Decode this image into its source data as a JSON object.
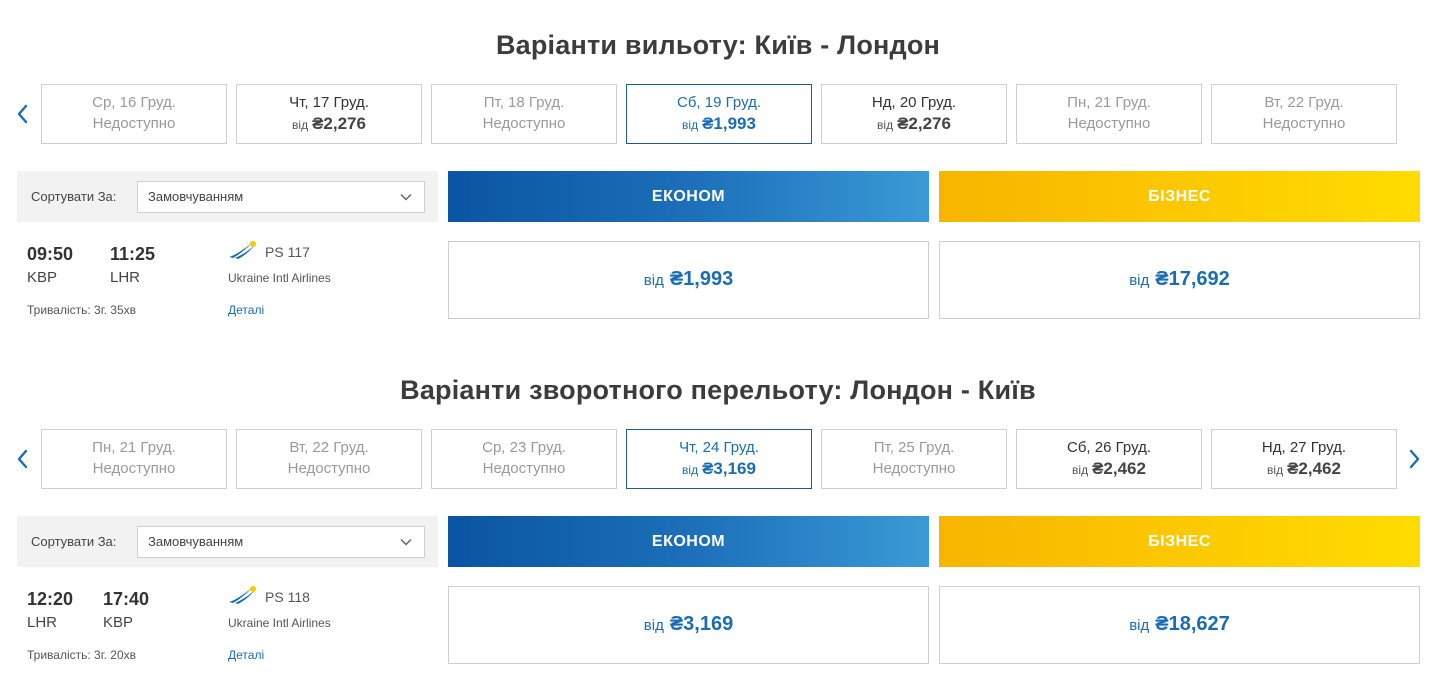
{
  "outbound": {
    "title": "Варіанти вильоту: Київ - Лондон",
    "dates": [
      {
        "date": "Ср, 16 Груд.",
        "status": "Недоступно"
      },
      {
        "date": "Чт, 17 Груд.",
        "prefix": "від",
        "price": "₴2,276"
      },
      {
        "date": "Пт, 18 Груд.",
        "status": "Недоступно"
      },
      {
        "date": "Сб, 19 Груд.",
        "prefix": "від",
        "price": "₴1,993",
        "selected": true
      },
      {
        "date": "Нд, 20 Груд.",
        "prefix": "від",
        "price": "₴2,276"
      },
      {
        "date": "Пн, 21 Груд.",
        "status": "Недоступно"
      },
      {
        "date": "Вт, 22 Груд.",
        "status": "Недоступно"
      }
    ],
    "sort_label": "Сортувати За:",
    "sort_value": "Замовчуванням",
    "cabin_econom": "ЕКОНОМ",
    "cabin_business": "БІЗНЕС",
    "flight": {
      "dep_time": "09:50",
      "arr_time": "11:25",
      "dep_code": "KBP",
      "arr_code": "LHR",
      "duration": "Тривалість: 3г. 35хв",
      "flight_no": "PS 117",
      "airline": "Ukraine Intl Airlines",
      "details": "Деталі",
      "econom_prefix": "від",
      "econom_price": "₴1,993",
      "business_prefix": "від",
      "business_price": "₴17,692"
    }
  },
  "return": {
    "title": "Варіанти зворотного перельоту: Лондон - Київ",
    "dates": [
      {
        "date": "Пн, 21 Груд.",
        "status": "Недоступно"
      },
      {
        "date": "Вт, 22 Груд.",
        "status": "Недоступно"
      },
      {
        "date": "Ср, 23 Груд.",
        "status": "Недоступно"
      },
      {
        "date": "Чт, 24 Груд.",
        "prefix": "від",
        "price": "₴3,169",
        "selected": true
      },
      {
        "date": "Пт, 25 Груд.",
        "status": "Недоступно"
      },
      {
        "date": "Сб, 26 Груд.",
        "prefix": "від",
        "price": "₴2,462"
      },
      {
        "date": "Нд, 27 Груд.",
        "prefix": "від",
        "price": "₴2,462"
      }
    ],
    "sort_label": "Сортувати За:",
    "sort_value": "Замовчуванням",
    "cabin_econom": "ЕКОНОМ",
    "cabin_business": "БІЗНЕС",
    "flight": {
      "dep_time": "12:20",
      "arr_time": "17:40",
      "dep_code": "LHR",
      "arr_code": "KBP",
      "duration": "Тривалість: 3г. 20хв",
      "flight_no": "PS 118",
      "airline": "Ukraine Intl Airlines",
      "details": "Деталі",
      "econom_prefix": "від",
      "econom_price": "₴3,169",
      "business_prefix": "від",
      "business_price": "₴18,627"
    }
  },
  "icons": {
    "prev": "chevron-left-icon",
    "next": "chevron-right-icon",
    "dropdown": "chevron-down-icon",
    "airline_logo": "uia-logo-icon"
  },
  "colors": {
    "accent_blue": "#1a6db4",
    "econom_gradient_start": "#0a55a3",
    "econom_gradient_end": "#3a9ad6",
    "business_gradient_start": "#f7b500",
    "business_gradient_end": "#ffdc00"
  }
}
